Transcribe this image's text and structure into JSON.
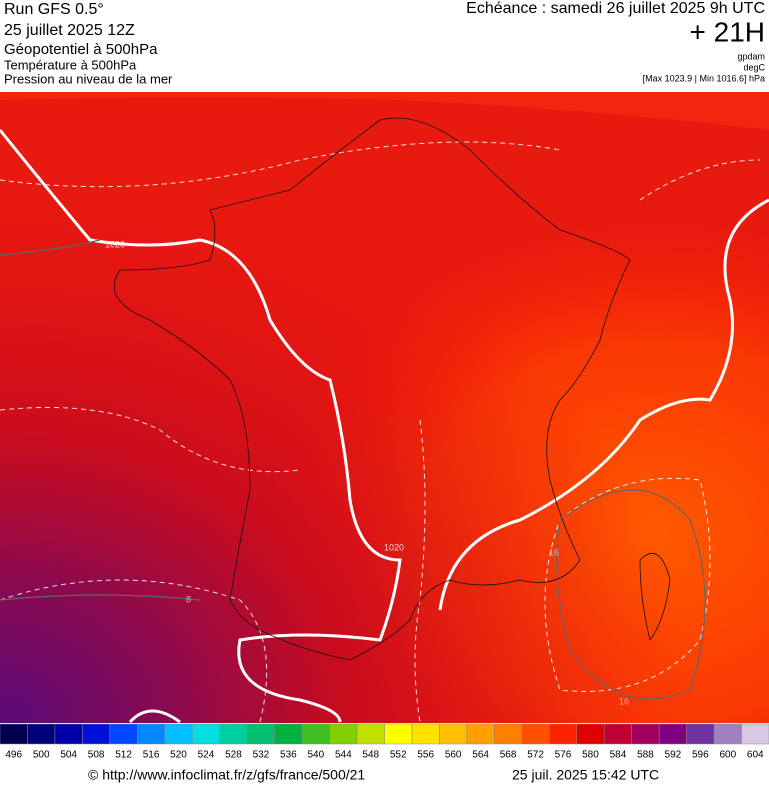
{
  "header": {
    "run": "Run GFS 0.5°",
    "date": "25 juillet 2025 12Z",
    "title": "Géopotentiel à 500hPa",
    "subtitle1": "Température à 500hPa",
    "subtitle2": "Pression au niveau de la mer",
    "echeance": "Echéance : samedi 26 juillet 2025 9h UTC",
    "lead": "+ 21H",
    "unit1": "gpdam",
    "unit2": "degC",
    "range": "[Max 1023.9 | Min 1016.6] hPa"
  },
  "map": {
    "contour_labels": [
      "1020",
      "1020",
      "16",
      "16",
      "8"
    ]
  },
  "legend": {
    "labels": [
      496,
      500,
      504,
      508,
      512,
      516,
      520,
      524,
      528,
      532,
      536,
      540,
      544,
      548,
      552,
      556,
      560,
      564,
      568,
      572,
      576,
      580,
      584,
      588,
      592,
      596,
      600,
      604
    ],
    "colors": [
      "#000050",
      "#00007a",
      "#0000a8",
      "#0010d8",
      "#0048ff",
      "#0088ff",
      "#00c0ff",
      "#00e0e0",
      "#00d0a0",
      "#00c070",
      "#00b040",
      "#40c020",
      "#80d000",
      "#c0e000",
      "#ffff00",
      "#ffe000",
      "#ffc000",
      "#ffa000",
      "#ff8000",
      "#ff5000",
      "#ff2000",
      "#e00000",
      "#c00030",
      "#a00060",
      "#800080",
      "#7030a0",
      "#a080c0",
      "#d8c8e8"
    ]
  },
  "footer": {
    "url": "© http://www.infoclimat.fr/z/gfs/france/500/21",
    "timestamp": "25 juil. 2025 15:42 UTC"
  }
}
